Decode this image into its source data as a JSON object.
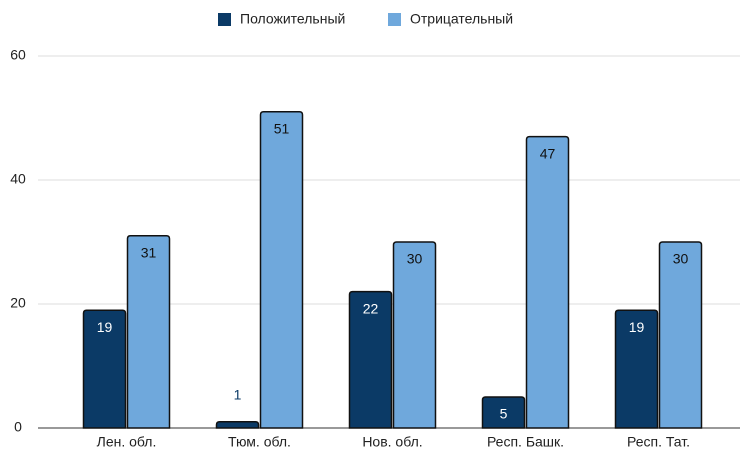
{
  "chart_data": {
    "type": "bar",
    "categories": [
      "Лен. обл.",
      "Тюм. обл.",
      "Нов. обл.",
      "Респ. Башк.",
      "Респ. Тат."
    ],
    "series": [
      {
        "name": "Положительный",
        "color": "#0b3a66",
        "values": [
          19,
          1,
          22,
          5,
          19
        ]
      },
      {
        "name": "Отрицательный",
        "color": "#6fa8dc",
        "values": [
          31,
          51,
          30,
          47,
          30
        ]
      }
    ],
    "ylim": [
      0,
      60
    ],
    "yticks": [
      0,
      20,
      40,
      60
    ],
    "grid": true,
    "legend": "top"
  }
}
